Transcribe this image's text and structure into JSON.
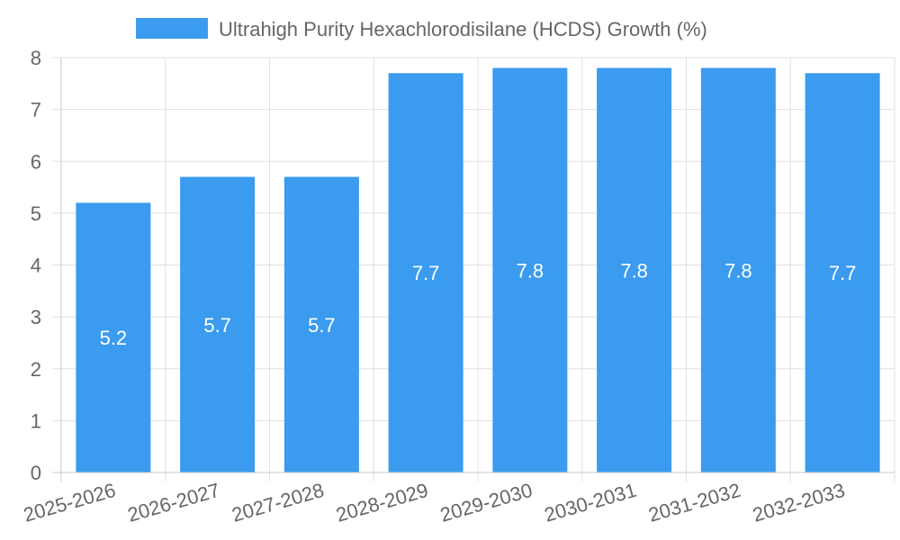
{
  "legend": {
    "label": "Ultrahigh Purity Hexachlorodisilane (HCDS) Growth (%)"
  },
  "colors": {
    "bar": "#3a9bef",
    "grid": "#e0e0e0",
    "axis": "#c8c8c8",
    "text": "#666666"
  },
  "chart_data": {
    "type": "bar",
    "categories": [
      "2025-2026",
      "2026-2027",
      "2027-2028",
      "2028-2029",
      "2029-2030",
      "2030-2031",
      "2031-2032",
      "2032-2033"
    ],
    "series": [
      {
        "name": "Ultrahigh Purity Hexachlorodisilane (HCDS) Growth (%)",
        "values": [
          5.2,
          5.7,
          5.7,
          7.7,
          7.8,
          7.8,
          7.8,
          7.7
        ],
        "data_labels": [
          "5.2",
          "5.7",
          "5.7",
          "7.7",
          "7.8",
          "7.8",
          "7.8",
          "7.7"
        ]
      }
    ],
    "ylim": [
      0,
      8
    ],
    "yticks": [
      0,
      1,
      2,
      3,
      4,
      5,
      6,
      7,
      8
    ],
    "grid": true,
    "legend_position": "top-center",
    "xlabel": "",
    "ylabel": ""
  }
}
